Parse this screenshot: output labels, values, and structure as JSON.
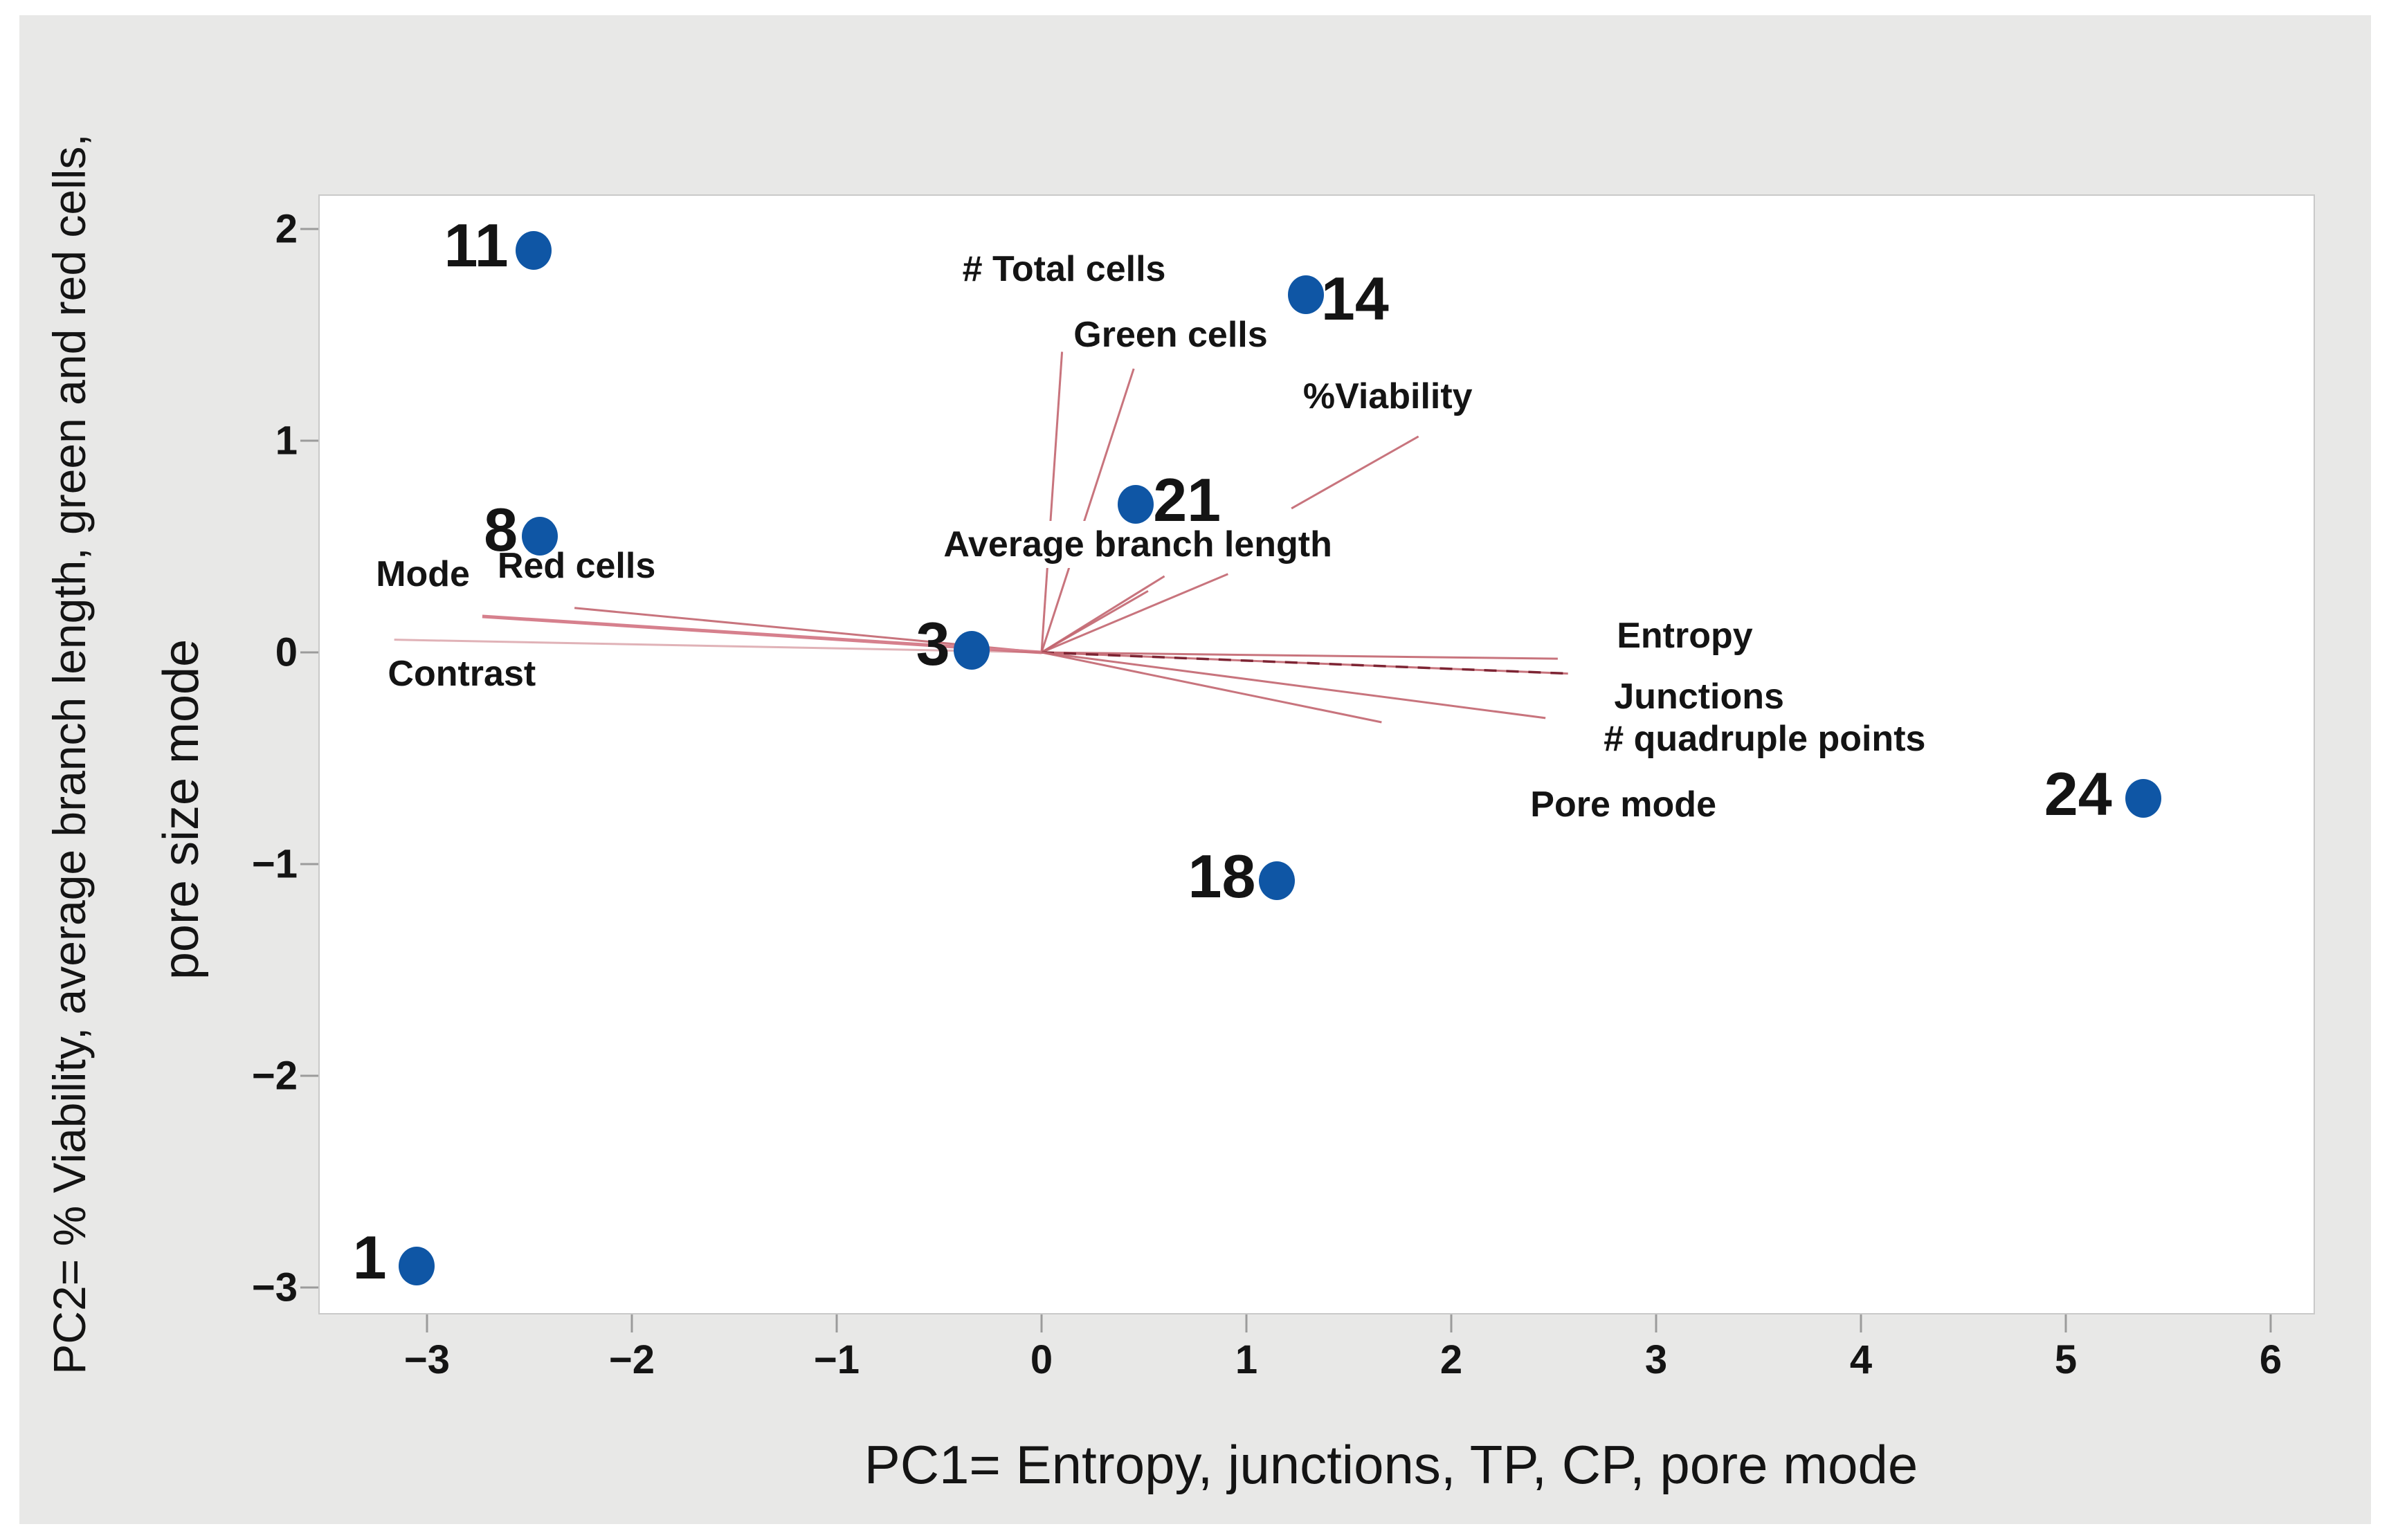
{
  "colors": {
    "background": "#e8e8e7",
    "plot_background": "#ffffff",
    "plot_border": "#c9c9c9",
    "dot": "#0f56a5",
    "vector": "#c2656f",
    "vector_thick": "#d6808d",
    "vector_dashed": "#7d2433",
    "tick": "#9b9b9b",
    "text": "#141414"
  },
  "chart_data": {
    "type": "scatter",
    "title": "",
    "xlabel": "PC1= Entropy, junctions, TP, CP, pore mode",
    "ylabel_line1": "PC2= % Viability, average branch length, green and red cells,",
    "ylabel_line2": "pore size mode",
    "xlim": [
      -3.53,
      6.22
    ],
    "ylim": [
      -3.13,
      2.16
    ],
    "grid": false,
    "legend": false,
    "x_ticks": [
      {
        "value": -3,
        "label": "−3"
      },
      {
        "value": -2,
        "label": "−2"
      },
      {
        "value": -1,
        "label": "−1"
      },
      {
        "value": 0,
        "label": "0"
      },
      {
        "value": 1,
        "label": "1"
      },
      {
        "value": 2,
        "label": "2"
      },
      {
        "value": 3,
        "label": "3"
      },
      {
        "value": 4,
        "label": "4"
      },
      {
        "value": 5,
        "label": "5"
      },
      {
        "value": 6,
        "label": "6"
      }
    ],
    "y_ticks": [
      {
        "value": 2,
        "label": "2"
      },
      {
        "value": 1,
        "label": "1"
      },
      {
        "value": 0,
        "label": "0"
      },
      {
        "value": -1,
        "label": "−1"
      },
      {
        "value": -2,
        "label": "−2"
      },
      {
        "value": -3,
        "label": "−3"
      }
    ],
    "points": [
      {
        "id": "1",
        "x": -3.05,
        "y": -2.9,
        "label_x": -3.28,
        "label_y": -2.86
      },
      {
        "id": "3",
        "x": -0.34,
        "y": 0.01,
        "label_x": -0.53,
        "label_y": 0.04
      },
      {
        "id": "8",
        "x": -2.45,
        "y": 0.55,
        "label_x": -2.64,
        "label_y": 0.58
      },
      {
        "id": "11",
        "x": -2.48,
        "y": 1.9,
        "label_x": -2.76,
        "label_y": 1.92
      },
      {
        "id": "14",
        "x": 1.29,
        "y": 1.69,
        "label_x": 1.53,
        "label_y": 1.67
      },
      {
        "id": "18",
        "x": 1.15,
        "y": -1.08,
        "label_x": 0.88,
        "label_y": -1.06
      },
      {
        "id": "21",
        "x": 0.46,
        "y": 0.7,
        "label_x": 0.71,
        "label_y": 0.72
      },
      {
        "id": "24",
        "x": 5.38,
        "y": -0.69,
        "label_x": 5.06,
        "label_y": -0.67
      }
    ],
    "loading_vectors": [
      {
        "name": "total-cells",
        "label": "# Total cells",
        "segments": [
          [
            0,
            0,
            0.1,
            1.42
          ]
        ],
        "label_x": 0.11,
        "label_y": 1.81,
        "style": "solid"
      },
      {
        "name": "green-cells",
        "label": "Green cells",
        "segments": [
          [
            0,
            0,
            0.45,
            1.34
          ]
        ],
        "label_x": 0.63,
        "label_y": 1.5,
        "style": "solid"
      },
      {
        "name": "viability",
        "label": "%Viability",
        "segments": [
          [
            0,
            0,
            0.52,
            0.29
          ],
          [
            1.22,
            0.68,
            1.84,
            1.02
          ]
        ],
        "label_x": 1.69,
        "label_y": 1.21,
        "style": "solid"
      },
      {
        "name": "average-branch-length",
        "label": "Average branch length",
        "segments": [
          [
            0,
            0,
            0.91,
            0.37
          ]
        ],
        "label_x": 0.47,
        "label_y": 0.51,
        "style": "solid"
      },
      {
        "name": "average-branch-length-2",
        "label": "",
        "segments": [
          [
            0,
            0,
            0.6,
            0.36
          ]
        ],
        "style": "solid"
      },
      {
        "name": "red-cells",
        "label": "Red cells",
        "segments": [
          [
            0,
            0,
            -2.28,
            0.21
          ]
        ],
        "label_x": -2.27,
        "label_y": 0.41,
        "style": "solid"
      },
      {
        "name": "contrast",
        "label": "Contrast",
        "segments": [
          [
            0,
            0,
            -2.73,
            0.17
          ]
        ],
        "label_x": -2.83,
        "label_y": -0.1,
        "style": "thick"
      },
      {
        "name": "mode",
        "label": "Mode",
        "segments": [
          [
            0,
            0,
            -3.16,
            0.06
          ]
        ],
        "label_x": -3.02,
        "label_y": 0.37,
        "style": "faint"
      },
      {
        "name": "entropy",
        "label": "Entropy",
        "segments": [
          [
            0,
            0,
            2.52,
            -0.03
          ]
        ],
        "label_x": 3.14,
        "label_y": 0.08,
        "style": "solid"
      },
      {
        "name": "junctions",
        "label": "Junctions",
        "segments": [
          [
            0,
            0,
            2.57,
            -0.1
          ]
        ],
        "label_x": 3.21,
        "label_y": -0.21,
        "style": "dashed"
      },
      {
        "name": "quadruple-points",
        "label": "# quadruple points",
        "segments": [
          [
            0,
            0,
            2.46,
            -0.31
          ]
        ],
        "label_x": 3.53,
        "label_y": -0.41,
        "style": "solid"
      },
      {
        "name": "pore-mode",
        "label": "Pore mode",
        "segments": [
          [
            0,
            0,
            1.66,
            -0.33
          ]
        ],
        "label_x": 2.84,
        "label_y": -0.72,
        "style": "solid"
      }
    ]
  }
}
